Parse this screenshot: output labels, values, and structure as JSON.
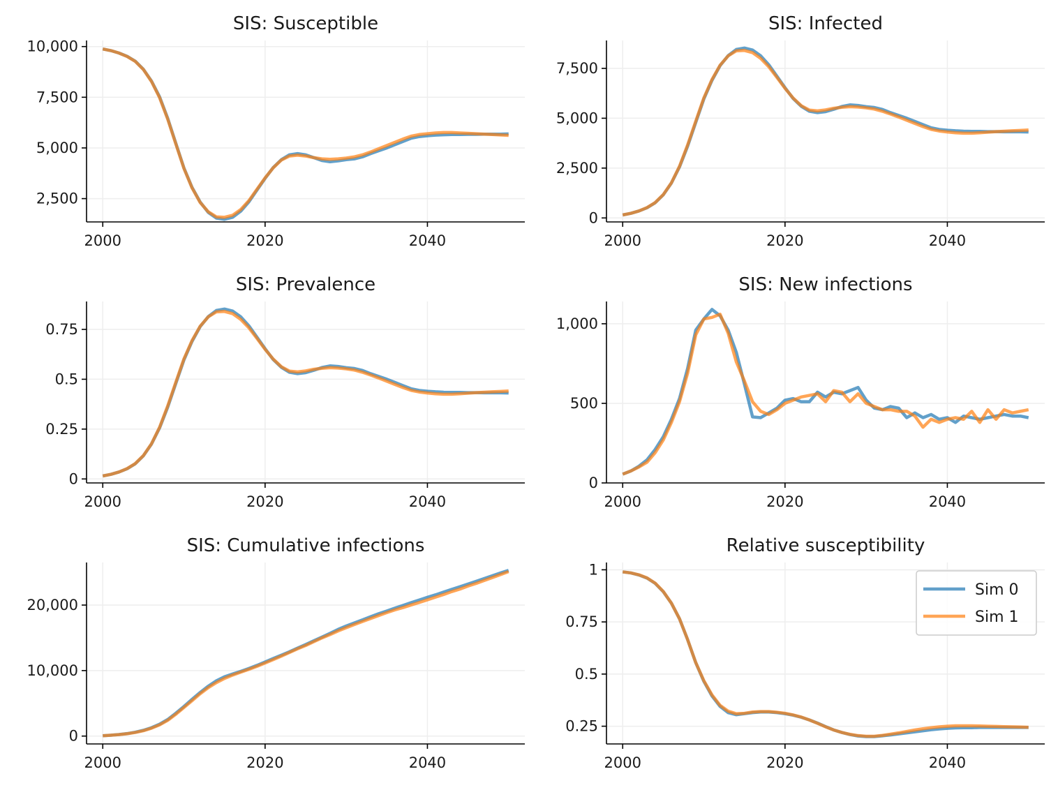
{
  "colors": {
    "sim0": "#1f77b4",
    "sim1": "#ff7f0e",
    "grid": "#eeeeee",
    "axis": "#000000"
  },
  "legend": {
    "placement": "upper-right",
    "panel": 5,
    "entries": [
      "Sim 0",
      "Sim 1"
    ]
  },
  "chart_data": [
    {
      "type": "line",
      "title": "SIS: Susceptible",
      "x": [
        2000,
        2001,
        2002,
        2003,
        2004,
        2005,
        2006,
        2007,
        2008,
        2009,
        2010,
        2011,
        2012,
        2013,
        2014,
        2015,
        2016,
        2017,
        2018,
        2019,
        2020,
        2021,
        2022,
        2023,
        2024,
        2025,
        2026,
        2027,
        2028,
        2029,
        2030,
        2031,
        2032,
        2033,
        2034,
        2035,
        2036,
        2037,
        2038,
        2039,
        2040,
        2041,
        2042,
        2043,
        2044,
        2045,
        2046,
        2047,
        2048,
        2049,
        2050
      ],
      "xlim": [
        1998,
        2052
      ],
      "ylim": [
        1350,
        10300
      ],
      "yticks": [
        2500,
        5000,
        7500,
        10000
      ],
      "ytick_labels": [
        "2,500",
        "5,000",
        "7,500",
        "10,000"
      ],
      "xticks": [
        2000,
        2020,
        2040
      ],
      "xtick_labels": [
        "2000",
        "2020",
        "2040"
      ],
      "series": [
        {
          "name": "Sim 0",
          "values": [
            9880,
            9800,
            9680,
            9520,
            9280,
            8880,
            8300,
            7520,
            6460,
            5230,
            4010,
            3050,
            2330,
            1820,
            1540,
            1480,
            1580,
            1880,
            2340,
            2920,
            3500,
            4030,
            4420,
            4660,
            4720,
            4660,
            4520,
            4380,
            4320,
            4360,
            4420,
            4460,
            4560,
            4720,
            4860,
            5000,
            5160,
            5320,
            5480,
            5560,
            5600,
            5630,
            5650,
            5660,
            5660,
            5670,
            5670,
            5680,
            5680,
            5680,
            5690
          ]
        },
        {
          "name": "Sim 1",
          "values": [
            9880,
            9800,
            9680,
            9510,
            9270,
            8870,
            8280,
            7480,
            6420,
            5200,
            3990,
            3030,
            2310,
            1850,
            1600,
            1580,
            1680,
            1960,
            2400,
            2960,
            3520,
            4020,
            4400,
            4600,
            4640,
            4600,
            4520,
            4460,
            4440,
            4460,
            4500,
            4560,
            4660,
            4800,
            4960,
            5120,
            5280,
            5440,
            5580,
            5660,
            5700,
            5740,
            5760,
            5760,
            5740,
            5720,
            5700,
            5680,
            5660,
            5640,
            5620
          ]
        }
      ]
    },
    {
      "type": "line",
      "title": "SIS: Infected",
      "x": [
        2000,
        2001,
        2002,
        2003,
        2004,
        2005,
        2006,
        2007,
        2008,
        2009,
        2010,
        2011,
        2012,
        2013,
        2014,
        2015,
        2016,
        2017,
        2018,
        2019,
        2020,
        2021,
        2022,
        2023,
        2024,
        2025,
        2026,
        2027,
        2028,
        2029,
        2030,
        2031,
        2032,
        2033,
        2034,
        2035,
        2036,
        2037,
        2038,
        2039,
        2040,
        2041,
        2042,
        2043,
        2044,
        2045,
        2046,
        2047,
        2048,
        2049,
        2050
      ],
      "xlim": [
        1998,
        2052
      ],
      "ylim": [
        -200,
        8900
      ],
      "yticks": [
        0,
        2500,
        5000,
        7500
      ],
      "ytick_labels": [
        "0",
        "2,500",
        "5,000",
        "7,500"
      ],
      "xticks": [
        2000,
        2020,
        2040
      ],
      "xtick_labels": [
        "2000",
        "2020",
        "2040"
      ],
      "series": [
        {
          "name": "Sim 0",
          "values": [
            150,
            230,
            350,
            510,
            760,
            1160,
            1750,
            2560,
            3600,
            4790,
            5970,
            6900,
            7640,
            8140,
            8450,
            8520,
            8420,
            8130,
            7680,
            7110,
            6530,
            5990,
            5600,
            5350,
            5280,
            5330,
            5450,
            5590,
            5670,
            5640,
            5580,
            5540,
            5440,
            5280,
            5140,
            5000,
            4840,
            4680,
            4520,
            4440,
            4400,
            4370,
            4350,
            4340,
            4340,
            4330,
            4330,
            4320,
            4320,
            4320,
            4310
          ]
        },
        {
          "name": "Sim 1",
          "values": [
            150,
            230,
            350,
            520,
            770,
            1170,
            1760,
            2590,
            3660,
            4850,
            6020,
            6940,
            7660,
            8130,
            8380,
            8400,
            8290,
            8000,
            7580,
            7050,
            6500,
            6010,
            5630,
            5410,
            5370,
            5420,
            5500,
            5550,
            5580,
            5560,
            5520,
            5460,
            5350,
            5210,
            5060,
            4900,
            4740,
            4580,
            4440,
            4360,
            4310,
            4270,
            4250,
            4250,
            4270,
            4300,
            4330,
            4350,
            4370,
            4390,
            4410
          ]
        }
      ]
    },
    {
      "type": "line",
      "title": "SIS: Prevalence",
      "x": [
        2000,
        2001,
        2002,
        2003,
        2004,
        2005,
        2006,
        2007,
        2008,
        2009,
        2010,
        2011,
        2012,
        2013,
        2014,
        2015,
        2016,
        2017,
        2018,
        2019,
        2020,
        2021,
        2022,
        2023,
        2024,
        2025,
        2026,
        2027,
        2028,
        2029,
        2030,
        2031,
        2032,
        2033,
        2034,
        2035,
        2036,
        2037,
        2038,
        2039,
        2040,
        2041,
        2042,
        2043,
        2044,
        2045,
        2046,
        2047,
        2048,
        2049,
        2050
      ],
      "xlim": [
        1998,
        2052
      ],
      "ylim": [
        -0.02,
        0.89
      ],
      "yticks": [
        0,
        0.25,
        0.5,
        0.75
      ],
      "ytick_labels": [
        "0",
        "0.25",
        "0.5",
        "0.75"
      ],
      "xticks": [
        2000,
        2020,
        2040
      ],
      "xtick_labels": [
        "2000",
        "2020",
        "2040"
      ],
      "series": [
        {
          "name": "Sim 0",
          "values": [
            0.015,
            0.023,
            0.035,
            0.051,
            0.076,
            0.116,
            0.175,
            0.256,
            0.36,
            0.479,
            0.597,
            0.69,
            0.764,
            0.814,
            0.845,
            0.852,
            0.842,
            0.813,
            0.768,
            0.711,
            0.653,
            0.599,
            0.56,
            0.535,
            0.528,
            0.533,
            0.545,
            0.559,
            0.567,
            0.564,
            0.558,
            0.554,
            0.544,
            0.528,
            0.514,
            0.5,
            0.484,
            0.468,
            0.452,
            0.444,
            0.44,
            0.437,
            0.435,
            0.434,
            0.434,
            0.433,
            0.433,
            0.432,
            0.432,
            0.432,
            0.431
          ]
        },
        {
          "name": "Sim 1",
          "values": [
            0.015,
            0.023,
            0.035,
            0.052,
            0.077,
            0.117,
            0.176,
            0.259,
            0.366,
            0.485,
            0.602,
            0.694,
            0.766,
            0.813,
            0.838,
            0.84,
            0.829,
            0.8,
            0.758,
            0.705,
            0.65,
            0.601,
            0.563,
            0.541,
            0.537,
            0.542,
            0.55,
            0.555,
            0.558,
            0.556,
            0.552,
            0.546,
            0.535,
            0.521,
            0.506,
            0.49,
            0.474,
            0.458,
            0.444,
            0.436,
            0.431,
            0.427,
            0.425,
            0.425,
            0.427,
            0.43,
            0.433,
            0.435,
            0.437,
            0.439,
            0.441
          ]
        }
      ]
    },
    {
      "type": "line",
      "title": "SIS: New infections",
      "x": [
        2000,
        2001,
        2002,
        2003,
        2004,
        2005,
        2006,
        2007,
        2008,
        2009,
        2010,
        2011,
        2012,
        2013,
        2014,
        2015,
        2016,
        2017,
        2018,
        2019,
        2020,
        2021,
        2022,
        2023,
        2024,
        2025,
        2026,
        2027,
        2028,
        2029,
        2030,
        2031,
        2032,
        2033,
        2034,
        2035,
        2036,
        2037,
        2038,
        2039,
        2040,
        2041,
        2042,
        2043,
        2044,
        2045,
        2046,
        2047,
        2048,
        2049,
        2050
      ],
      "xlim": [
        1998,
        2052
      ],
      "ylim": [
        0,
        1140
      ],
      "yticks": [
        0,
        500,
        1000
      ],
      "ytick_labels": [
        "0",
        "500",
        "1,000"
      ],
      "xticks": [
        2000,
        2020,
        2040
      ],
      "xtick_labels": [
        "2000",
        "2020",
        "2040"
      ],
      "series": [
        {
          "name": "Sim 0",
          "values": [
            55,
            75,
            105,
            145,
            210,
            290,
            400,
            530,
            720,
            960,
            1030,
            1090,
            1050,
            960,
            820,
            620,
            415,
            410,
            440,
            470,
            520,
            530,
            510,
            510,
            570,
            540,
            570,
            560,
            580,
            600,
            520,
            470,
            460,
            480,
            470,
            410,
            440,
            410,
            430,
            400,
            410,
            380,
            420,
            410,
            400,
            410,
            420,
            430,
            420,
            420,
            410
          ]
        },
        {
          "name": "Sim 1",
          "values": [
            55,
            75,
            100,
            130,
            190,
            270,
            380,
            510,
            690,
            930,
            1030,
            1040,
            1060,
            940,
            760,
            640,
            510,
            450,
            430,
            460,
            500,
            520,
            540,
            550,
            560,
            510,
            580,
            570,
            510,
            560,
            500,
            480,
            460,
            460,
            450,
            450,
            420,
            350,
            400,
            380,
            400,
            410,
            400,
            450,
            380,
            460,
            400,
            460,
            440,
            450,
            460
          ]
        }
      ]
    },
    {
      "type": "line",
      "title": "SIS: Cumulative infections",
      "x": [
        2000,
        2001,
        2002,
        2003,
        2004,
        2005,
        2006,
        2007,
        2008,
        2009,
        2010,
        2011,
        2012,
        2013,
        2014,
        2015,
        2016,
        2017,
        2018,
        2019,
        2020,
        2021,
        2022,
        2023,
        2024,
        2025,
        2026,
        2027,
        2028,
        2029,
        2030,
        2031,
        2032,
        2033,
        2034,
        2035,
        2036,
        2037,
        2038,
        2039,
        2040,
        2041,
        2042,
        2043,
        2044,
        2045,
        2046,
        2047,
        2048,
        2049,
        2050
      ],
      "xlim": [
        1998,
        2052
      ],
      "ylim": [
        -1200,
        26500
      ],
      "yticks": [
        0,
        10000,
        20000
      ],
      "ytick_labels": [
        "0",
        "10,000",
        "20,000"
      ],
      "xticks": [
        2000,
        2020,
        2040
      ],
      "xtick_labels": [
        "2000",
        "2020",
        "2040"
      ],
      "series": [
        {
          "name": "Sim 0",
          "values": [
            55,
            130,
            235,
            380,
            590,
            880,
            1280,
            1810,
            2530,
            3490,
            4520,
            5610,
            6660,
            7620,
            8440,
            9060,
            9475,
            9885,
            10325,
            10795,
            11315,
            11845,
            12355,
            12865,
            13435,
            13975,
            14545,
            15105,
            15685,
            16285,
            16805,
            17275,
            17735,
            18215,
            18685,
            19095,
            19535,
            19945,
            20375,
            20775,
            21185,
            21565,
            21985,
            22395,
            22795,
            23205,
            23625,
            24055,
            24475,
            24895,
            25305
          ]
        },
        {
          "name": "Sim 1",
          "values": [
            55,
            130,
            230,
            360,
            550,
            820,
            1200,
            1710,
            2400,
            3330,
            4360,
            5400,
            6460,
            7400,
            8160,
            8800,
            9310,
            9760,
            10190,
            10650,
            11150,
            11670,
            12210,
            12760,
            13320,
            13830,
            14410,
            14980,
            15490,
            16050,
            16550,
            17030,
            17490,
            17950,
            18400,
            18850,
            19270,
            19620,
            20020,
            20400,
            20800,
            21210,
            21610,
            22060,
            22440,
            22900,
            23300,
            23760,
            24200,
            24650,
            25110
          ]
        }
      ]
    },
    {
      "type": "line",
      "title": "Relative susceptibility",
      "x": [
        2000,
        2001,
        2002,
        2003,
        2004,
        2005,
        2006,
        2007,
        2008,
        2009,
        2010,
        2011,
        2012,
        2013,
        2014,
        2015,
        2016,
        2017,
        2018,
        2019,
        2020,
        2021,
        2022,
        2023,
        2024,
        2025,
        2026,
        2027,
        2028,
        2029,
        2030,
        2031,
        2032,
        2033,
        2034,
        2035,
        2036,
        2037,
        2038,
        2039,
        2040,
        2041,
        2042,
        2043,
        2044,
        2045,
        2046,
        2047,
        2048,
        2049,
        2050
      ],
      "xlim": [
        1998,
        2052
      ],
      "ylim": [
        0.165,
        1.035
      ],
      "yticks": [
        0.25,
        0.5,
        0.75,
        1
      ],
      "ytick_labels": [
        "0.25",
        "0.5",
        "0.75",
        "1"
      ],
      "xticks": [
        2000,
        2020,
        2040
      ],
      "xtick_labels": [
        "2000",
        "2020",
        "2040"
      ],
      "series": [
        {
          "name": "Sim 0",
          "values": [
            0.99,
            0.985,
            0.975,
            0.96,
            0.935,
            0.895,
            0.84,
            0.765,
            0.665,
            0.555,
            0.465,
            0.395,
            0.345,
            0.315,
            0.305,
            0.31,
            0.315,
            0.318,
            0.318,
            0.315,
            0.31,
            0.303,
            0.293,
            0.28,
            0.265,
            0.248,
            0.232,
            0.22,
            0.21,
            0.203,
            0.2,
            0.2,
            0.204,
            0.208,
            0.213,
            0.218,
            0.223,
            0.228,
            0.233,
            0.237,
            0.24,
            0.242,
            0.243,
            0.243,
            0.244,
            0.244,
            0.244,
            0.244,
            0.244,
            0.244,
            0.244
          ]
        },
        {
          "name": "Sim 1",
          "values": [
            0.99,
            0.985,
            0.976,
            0.961,
            0.936,
            0.896,
            0.84,
            0.765,
            0.665,
            0.555,
            0.468,
            0.4,
            0.35,
            0.322,
            0.31,
            0.312,
            0.318,
            0.32,
            0.32,
            0.317,
            0.312,
            0.304,
            0.294,
            0.28,
            0.264,
            0.247,
            0.232,
            0.22,
            0.211,
            0.205,
            0.202,
            0.202,
            0.206,
            0.212,
            0.218,
            0.225,
            0.232,
            0.238,
            0.243,
            0.247,
            0.25,
            0.252,
            0.252,
            0.252,
            0.251,
            0.25,
            0.249,
            0.248,
            0.247,
            0.246,
            0.245
          ]
        }
      ]
    }
  ]
}
